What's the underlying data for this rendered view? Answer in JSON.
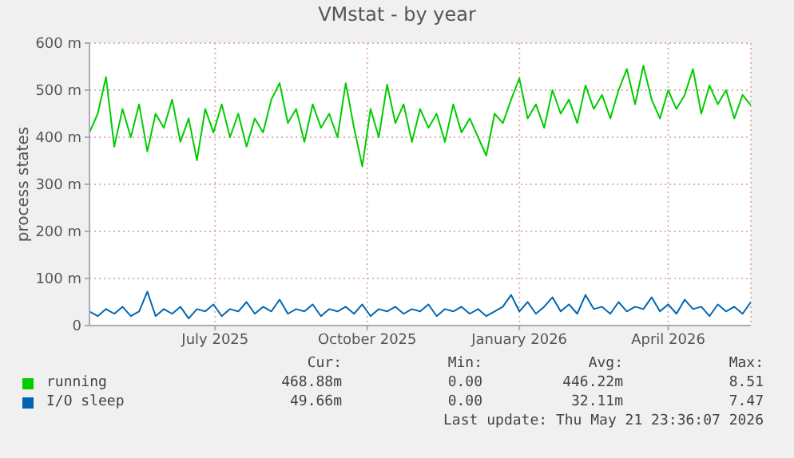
{
  "chart_data": {
    "type": "line",
    "title": "VMstat - by year",
    "ylabel": "process states",
    "xlim": [
      "2025-04-16",
      "2026-05-21"
    ],
    "xticks": [
      {
        "value": "2025-07-01",
        "label": "July 2025"
      },
      {
        "value": "2025-10-01",
        "label": "October 2025"
      },
      {
        "value": "2026-01-01",
        "label": "January 2026"
      },
      {
        "value": "2026-04-01",
        "label": "April 2026"
      }
    ],
    "ylim": [
      0,
      600
    ],
    "yticks": [
      0,
      {
        "value": 100,
        "label": "100 m"
      },
      {
        "value": 200,
        "label": "200 m"
      },
      {
        "value": 300,
        "label": "300 m"
      },
      {
        "value": 400,
        "label": "400 m"
      },
      {
        "value": 500,
        "label": "500 m"
      },
      {
        "value": 600,
        "label": "600 m"
      }
    ],
    "grid": true,
    "legend": "bottom",
    "marker": "none",
    "line_style": "solid",
    "x": [
      "2025-04-16",
      "2025-04-21",
      "2025-04-26",
      "2025-05-01",
      "2025-05-06",
      "2025-05-11",
      "2025-05-16",
      "2025-05-21",
      "2025-05-26",
      "2025-05-31",
      "2025-06-05",
      "2025-06-10",
      "2025-06-15",
      "2025-06-20",
      "2025-06-25",
      "2025-06-30",
      "2025-07-05",
      "2025-07-10",
      "2025-07-15",
      "2025-07-20",
      "2025-07-25",
      "2025-07-30",
      "2025-08-04",
      "2025-08-09",
      "2025-08-14",
      "2025-08-19",
      "2025-08-24",
      "2025-08-29",
      "2025-09-03",
      "2025-09-08",
      "2025-09-13",
      "2025-09-18",
      "2025-09-23",
      "2025-09-28",
      "2025-10-03",
      "2025-10-08",
      "2025-10-13",
      "2025-10-18",
      "2025-10-23",
      "2025-10-28",
      "2025-11-02",
      "2025-11-07",
      "2025-11-12",
      "2025-11-17",
      "2025-11-22",
      "2025-11-27",
      "2025-12-02",
      "2025-12-07",
      "2025-12-12",
      "2025-12-17",
      "2025-12-22",
      "2025-12-27",
      "2026-01-01",
      "2026-01-06",
      "2026-01-11",
      "2026-01-16",
      "2026-01-21",
      "2026-01-26",
      "2026-01-31",
      "2026-02-05",
      "2026-02-10",
      "2026-02-15",
      "2026-02-20",
      "2026-02-25",
      "2026-03-02",
      "2026-03-07",
      "2026-03-12",
      "2026-03-17",
      "2026-03-22",
      "2026-03-27",
      "2026-04-01",
      "2026-04-06",
      "2026-04-11",
      "2026-04-16",
      "2026-04-21",
      "2026-04-26",
      "2026-05-01",
      "2026-05-06",
      "2026-05-11",
      "2026-05-16",
      "2026-05-21"
    ],
    "series": [
      {
        "name": "running",
        "color": "#00cc00",
        "values": [
          410,
          450,
          528,
          380,
          460,
          400,
          470,
          370,
          450,
          420,
          480,
          390,
          440,
          351,
          460,
          410,
          470,
          400,
          450,
          380,
          440,
          410,
          480,
          515,
          430,
          460,
          390,
          470,
          420,
          450,
          400,
          515,
          420,
          338,
          460,
          400,
          512,
          430,
          470,
          390,
          460,
          420,
          450,
          390,
          470,
          410,
          440,
          400,
          361,
          450,
          430,
          480,
          525,
          440,
          470,
          420,
          500,
          450,
          480,
          430,
          510,
          460,
          490,
          440,
          500,
          545,
          470,
          552,
          480,
          440,
          500,
          460,
          490,
          545,
          450,
          510,
          470,
          500,
          440,
          490,
          468
        ]
      },
      {
        "name": "I/O sleep",
        "color": "#0066b3",
        "values": [
          30,
          20,
          35,
          25,
          40,
          20,
          30,
          72,
          20,
          35,
          25,
          40,
          15,
          35,
          30,
          45,
          20,
          35,
          30,
          50,
          25,
          40,
          30,
          55,
          25,
          35,
          30,
          45,
          20,
          35,
          30,
          40,
          25,
          45,
          20,
          35,
          30,
          40,
          25,
          35,
          30,
          45,
          20,
          35,
          30,
          40,
          25,
          35,
          20,
          30,
          40,
          65,
          30,
          50,
          25,
          40,
          60,
          30,
          45,
          25,
          65,
          35,
          40,
          25,
          50,
          30,
          40,
          35,
          60,
          30,
          45,
          25,
          55,
          35,
          40,
          20,
          45,
          30,
          40,
          25,
          50
        ]
      }
    ],
    "annotations": [
      "Cur:",
      "Min:",
      "Avg:",
      "Max:",
      "468.88m",
      "0.00",
      "446.22m",
      "8.51",
      "49.66m",
      "0.00",
      "32.11m",
      "7.47",
      "Last update: Thu May 21 23:36:07 2026"
    ]
  }
}
